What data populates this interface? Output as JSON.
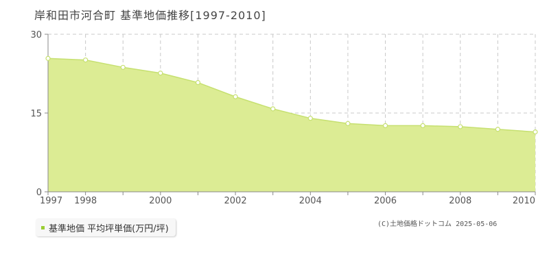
{
  "title": "岸和田市河合町 基準地価推移[1997-2010]",
  "legend": {
    "label": "基準地価 平均坪単価(万円/坪)"
  },
  "copyright": "(C)土地価格ドットコム 2025-05-06",
  "colors": {
    "fill": "#dcec94",
    "line": "#c6e070",
    "marker": "#9acd32",
    "grid": "#c8c8c8"
  },
  "chart_data": {
    "type": "area",
    "title": "岸和田市河合町 基準地価推移[1997-2010]",
    "xlabel": "",
    "ylabel": "",
    "x": [
      1997,
      1998,
      1999,
      2000,
      2001,
      2002,
      2003,
      2004,
      2005,
      2006,
      2007,
      2008,
      2009,
      2010
    ],
    "series": [
      {
        "name": "基準地価 平均坪単価(万円/坪)",
        "values": [
          25.4,
          25.1,
          23.7,
          22.6,
          20.8,
          18.1,
          15.8,
          14.0,
          13.0,
          12.6,
          12.6,
          12.4,
          11.9,
          11.4
        ]
      }
    ],
    "ylim": [
      0,
      30
    ],
    "xlim": [
      1997,
      2010
    ],
    "yticks": [
      0,
      15,
      30
    ],
    "xtick_labels": [
      "1997",
      "1998",
      "2000",
      "2002",
      "2004",
      "2006",
      "2008",
      "2010"
    ],
    "grid": true,
    "legend_position": "bottom-left"
  }
}
